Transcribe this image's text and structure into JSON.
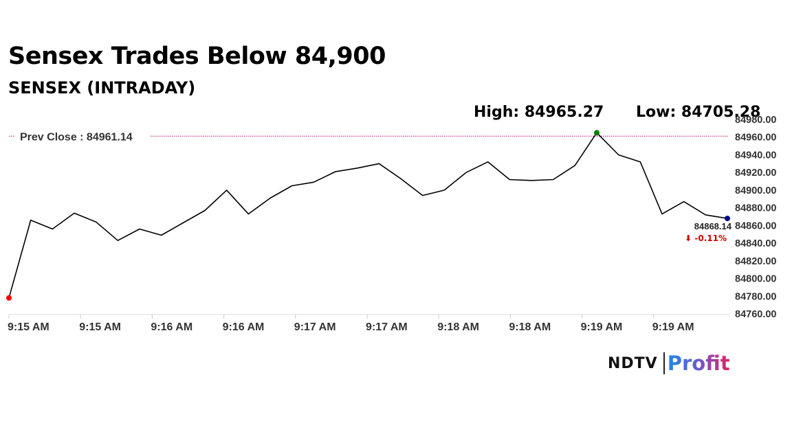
{
  "headline": "Sensex Trades Below 84,900",
  "subheadline": "SENSEX (INTRADAY)",
  "stats": {
    "high": "High: 84965.27",
    "low": "Low: 84705.28"
  },
  "logo": {
    "ndtv": "NDTV",
    "profit": "Profit"
  },
  "colors": {
    "line": "#000000",
    "start_marker": "#ff0000",
    "high_marker": "#008000",
    "last_marker": "#00008b",
    "prev_close_line": "#b0006a",
    "change_negative": "#cc0000"
  },
  "chart_data": {
    "type": "line",
    "series": [
      {
        "values": [
          84778,
          84866,
          84856,
          84874,
          84864,
          84843,
          84856,
          84849,
          84863,
          84877,
          84900,
          84873,
          84891,
          84905,
          84909,
          84921,
          84925,
          84930,
          84913,
          84894,
          84900,
          84920,
          84932,
          84912,
          84911,
          84912,
          84928,
          84965,
          84940,
          84932,
          84873,
          84887,
          84872,
          84868
        ]
      }
    ],
    "x_tick_labels": [
      "9:15 AM",
      "9:15 AM",
      "9:16 AM",
      "9:16 AM",
      "9:17 AM",
      "9:17 AM",
      "9:18 AM",
      "9:18 AM",
      "9:19 AM",
      "9:19 AM"
    ],
    "y_tick_labels": [
      "84980.00",
      "84960.00",
      "84940.00",
      "84920.00",
      "84900.00",
      "84880.00",
      "84860.00",
      "84840.00",
      "84820.00",
      "84800.00",
      "84780.00",
      "84760.00"
    ],
    "ylim": [
      84760,
      84980
    ],
    "prev_close": {
      "value": 84961.14,
      "label": "Prev Close : 84961.14"
    },
    "last": {
      "value": 84868.14,
      "label": "84868.14",
      "change": "⬇ -0.11%"
    },
    "grid": false,
    "legend": "none"
  }
}
